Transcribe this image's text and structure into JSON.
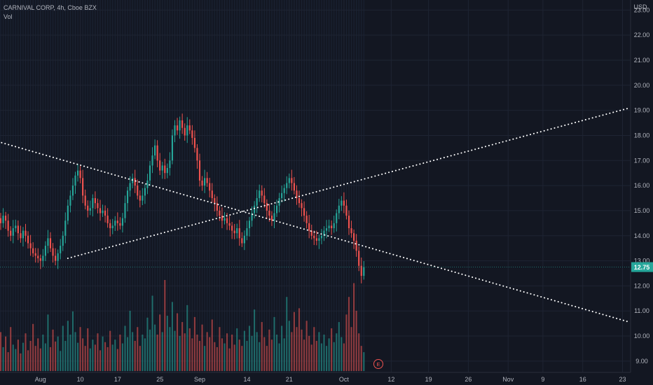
{
  "header": {
    "symbol_line": "CARNIVAL CORP, 4h, Cboe BZX",
    "volume_label": "Vol"
  },
  "price_scale": {
    "currency": "USD",
    "ticks": [
      "23.00",
      "22.00",
      "21.00",
      "20.00",
      "19.00",
      "18.00",
      "17.00",
      "16.00",
      "15.00",
      "14.00",
      "13.00",
      "12.00",
      "11.00",
      "10.00",
      "9.00"
    ],
    "last_price_label": "12.75"
  },
  "time_scale": {
    "ticks": [
      {
        "label": "Aug",
        "bar": 16
      },
      {
        "label": "10",
        "bar": 32
      },
      {
        "label": "17",
        "bar": 47
      },
      {
        "label": "25",
        "bar": 64
      },
      {
        "label": "Sep",
        "bar": 80
      },
      {
        "label": "14",
        "bar": 99
      },
      {
        "label": "21",
        "bar": 116
      },
      {
        "label": "Oct",
        "bar": 138
      },
      {
        "label": "12",
        "bar": 157
      },
      {
        "label": "19",
        "bar": 172
      },
      {
        "label": "26",
        "bar": 188
      },
      {
        "label": "Nov",
        "bar": 204
      },
      {
        "label": "9",
        "bar": 218
      },
      {
        "label": "16",
        "bar": 234
      },
      {
        "label": "23",
        "bar": 250
      }
    ]
  },
  "earnings_marker": "E",
  "colors": {
    "background": "#131722",
    "up": "#26a69a",
    "down": "#ef5350",
    "last_price": "#26a69a",
    "trendline": "#ffffff",
    "text": "#b2b5be"
  },
  "chart_data": {
    "type": "candlestick",
    "title": "CARNIVAL CORP, 4h, Cboe BZX",
    "ylabel": "USD",
    "ylim": [
      8.55,
      23.4
    ],
    "interval": "4h",
    "last_price": 12.75,
    "closes": [
      14.5,
      14.8,
      14.6,
      14.2,
      14.0,
      14.3,
      14.4,
      14.1,
      13.9,
      14.2,
      14.0,
      13.7,
      13.5,
      13.3,
      13.2,
      13.1,
      13.0,
      13.2,
      13.6,
      13.9,
      13.5,
      13.2,
      13.0,
      13.3,
      13.6,
      14.0,
      14.6,
      15.2,
      15.6,
      16.0,
      16.4,
      16.6,
      16.3,
      15.6,
      15.2,
      15.0,
      15.1,
      15.5,
      15.3,
      15.1,
      14.9,
      15.0,
      14.8,
      14.5,
      14.3,
      14.4,
      14.6,
      14.5,
      14.4,
      14.7,
      15.3,
      15.8,
      16.1,
      16.3,
      16.0,
      15.6,
      15.4,
      15.6,
      15.9,
      16.2,
      16.8,
      17.2,
      17.6,
      17.0,
      16.6,
      16.8,
      16.5,
      16.7,
      17.0,
      18.0,
      18.4,
      18.2,
      18.6,
      18.3,
      18.0,
      18.4,
      18.2,
      17.9,
      17.5,
      17.0,
      16.2,
      16.0,
      16.3,
      16.1,
      15.8,
      15.5,
      15.3,
      15.0,
      14.8,
      14.6,
      14.7,
      14.5,
      14.4,
      14.2,
      14.1,
      14.3,
      13.9,
      13.7,
      14.0,
      14.3,
      14.6,
      14.9,
      15.2,
      15.5,
      15.8,
      15.6,
      15.3,
      15.0,
      14.8,
      14.6,
      14.9,
      15.2,
      15.5,
      15.7,
      15.9,
      16.1,
      16.3,
      16.1,
      15.8,
      15.5,
      15.3,
      15.1,
      14.8,
      14.5,
      14.2,
      14.0,
      13.9,
      13.8,
      13.9,
      14.0,
      14.2,
      14.3,
      14.4,
      14.3,
      14.5,
      14.9,
      15.2,
      15.4,
      15.2,
      14.8,
      14.3,
      14.1,
      13.8,
      13.4,
      12.8,
      12.4,
      12.75
    ],
    "volumes": [
      62,
      38,
      55,
      30,
      70,
      42,
      35,
      50,
      28,
      45,
      60,
      33,
      48,
      75,
      40,
      52,
      36,
      58,
      44,
      90,
      38,
      66,
      47,
      55,
      32,
      72,
      48,
      80,
      58,
      95,
      62,
      45,
      70,
      52,
      40,
      68,
      36,
      50,
      42,
      60,
      33,
      55,
      46,
      38,
      64,
      42,
      50,
      35,
      58,
      44,
      72,
      54,
      96,
      62,
      48,
      70,
      40,
      58,
      52,
      85,
      66,
      120,
      74,
      58,
      90,
      62,
      145,
      88,
      70,
      110,
      64,
      92,
      56,
      78,
      60,
      105,
      68,
      52,
      86,
      58,
      48,
      74,
      40,
      62,
      54,
      82,
      46,
      38,
      70,
      52,
      44,
      60,
      36,
      58,
      42,
      68,
      50,
      40,
      64,
      48,
      72,
      56,
      98,
      62,
      46,
      78,
      54,
      40,
      66,
      50,
      86,
      58,
      44,
      72,
      52,
      118,
      80,
      62,
      94,
      70,
      100,
      66,
      50,
      80,
      56,
      42,
      70,
      48,
      62,
      44,
      58,
      40,
      52,
      68,
      46,
      60,
      78,
      54,
      44,
      90,
      118,
      70,
      140,
      96,
      60,
      40,
      30
    ],
    "trendlines": [
      {
        "style": "dotted",
        "start": {
          "bar": -1,
          "price": 17.75
        },
        "end": {
          "bar": 253,
          "price": 10.55
        }
      },
      {
        "style": "dotted",
        "start": {
          "bar": 27,
          "price": 13.1
        },
        "end": {
          "bar": 253,
          "price": 19.1
        }
      }
    ]
  }
}
